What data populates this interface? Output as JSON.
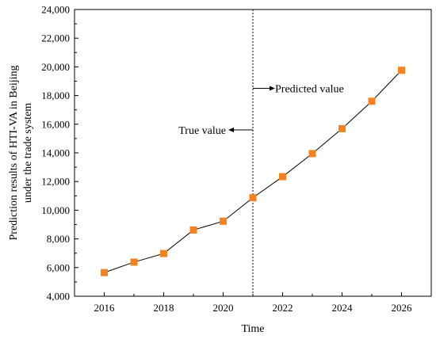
{
  "chart_data": {
    "type": "line",
    "xlabel": "Time",
    "ylabel_lines": [
      "Prediction results of HTI-VA in Beijing",
      "under the trade system"
    ],
    "xlim": [
      2015,
      2027
    ],
    "ylim": [
      4000,
      24000
    ],
    "x_ticks": [
      2016,
      2018,
      2020,
      2022,
      2024,
      2026
    ],
    "x_tick_labels": [
      "2016",
      "2018",
      "2020",
      "2022",
      "2024",
      "2026"
    ],
    "y_ticks": [
      4000,
      6000,
      8000,
      10000,
      12000,
      14000,
      16000,
      18000,
      20000,
      22000,
      24000
    ],
    "y_tick_labels": [
      "4,000",
      "6,000",
      "8,000",
      "10,000",
      "12,000",
      "14,000",
      "16,000",
      "18,000",
      "20,000",
      "22,000",
      "24,000"
    ],
    "series": [
      {
        "x": [
          2016,
          2017,
          2018,
          2019,
          2020,
          2021,
          2022,
          2023,
          2024,
          2025,
          2026
        ],
        "values": [
          5650,
          6380,
          6980,
          8620,
          9230,
          10870,
          12340,
          13950,
          15690,
          17600,
          19760
        ],
        "marker": "square",
        "marker_color": "#f5821f",
        "line_color": "#000000"
      }
    ],
    "divider_x": 2021,
    "annotations": {
      "predicted_label": "Predicted value",
      "true_label": "True value"
    },
    "grid": false
  }
}
